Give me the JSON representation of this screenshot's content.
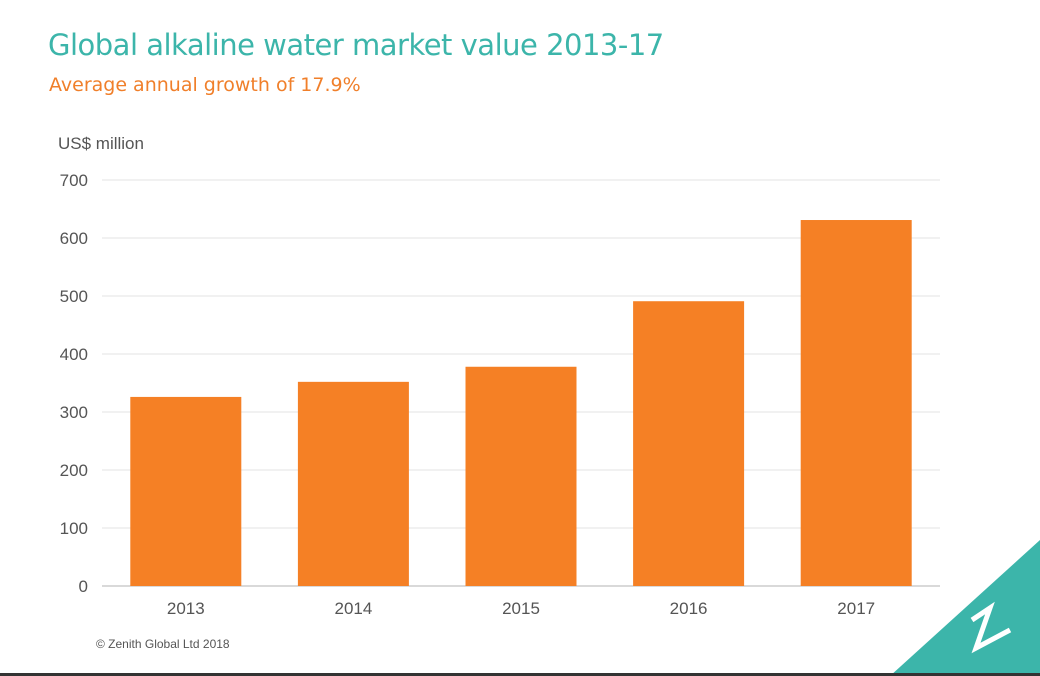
{
  "chart_data": {
    "type": "bar",
    "title": "Global alkaline water market value 2013-17",
    "subtitle": "Average annual growth of 17.9%",
    "ylabel": "US$ million",
    "xlabel": "",
    "categories": [
      "2013",
      "2014",
      "2015",
      "2016",
      "2017"
    ],
    "values": [
      326,
      352,
      378,
      491,
      631
    ],
    "ylim": [
      0,
      700
    ],
    "yticks": [
      0,
      100,
      200,
      300,
      400,
      500,
      600,
      700
    ],
    "grid": true,
    "bar_color": "#f58025"
  },
  "footer": {
    "copyright": "© Zenith Global Ltd 2018"
  },
  "colors": {
    "accent": "#3cb5aa",
    "subtitle": "#f07f2a"
  }
}
